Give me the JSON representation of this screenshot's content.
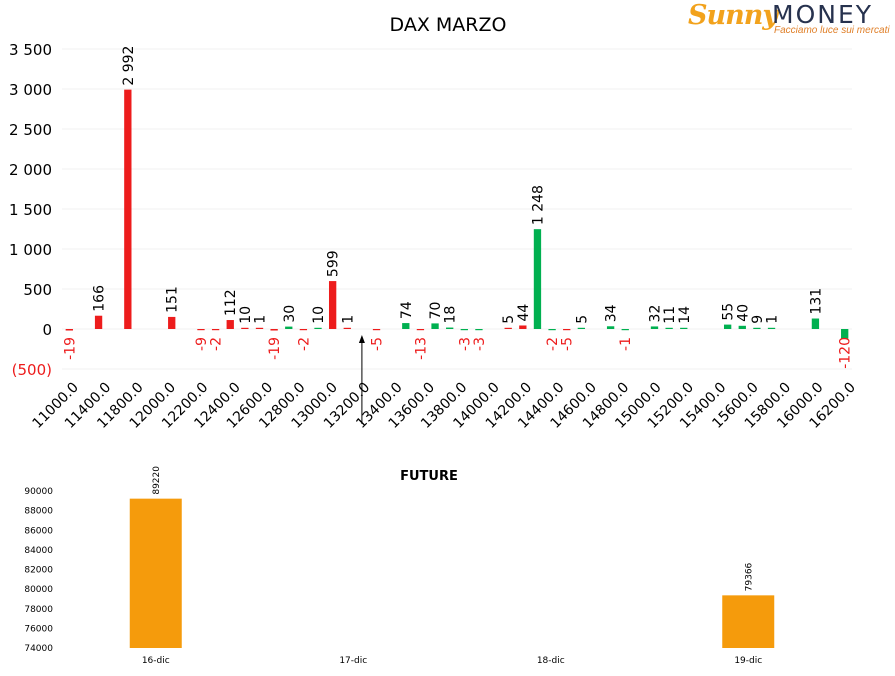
{
  "logo": {
    "brand": "Sunny",
    "brand2": "MONEY",
    "tagline": "Facciamo luce sui mercati"
  },
  "chart_data": [
    {
      "type": "bar",
      "title": "DAX MARZO",
      "ylim": [
        -500,
        3500
      ],
      "yticks": [
        -500,
        0,
        500,
        1000,
        1500,
        2000,
        2500,
        3000,
        3500
      ],
      "ytick_labels": [
        "(500)",
        "0",
        "500",
        "1 000",
        "1 500",
        "2 000",
        "2 500",
        "3 000",
        "3 500"
      ],
      "grid": true,
      "categories": [
        "11000.0",
        "11400.0",
        "11800.0",
        "12000.0",
        "12200.0",
        "12400.0",
        "12600.0",
        "12800.0",
        "13000.0",
        "13200.0",
        "13400.0",
        "13600.0",
        "13800.0",
        "14000.0",
        "14200.0",
        "14400.0",
        "14600.0",
        "14800.0",
        "15000.0",
        "15200.0",
        "15400.0",
        "15600.0",
        "15800.0",
        "16000.0",
        "16200.0"
      ],
      "colors": {
        "put": "#ed1c1c",
        "call": "#00b050",
        "negative_label": "#ed1c1c"
      },
      "bars": [
        {
          "slot": 0,
          "value": -19,
          "color": "put",
          "label": "-19"
        },
        {
          "slot": 2,
          "value": 166,
          "color": "put",
          "label": "166"
        },
        {
          "slot": 4,
          "value": 2992,
          "color": "put",
          "label": "2 992"
        },
        {
          "slot": 7,
          "value": 151,
          "color": "put",
          "label": "151"
        },
        {
          "slot": 9,
          "value": -9,
          "color": "put",
          "label": "-9"
        },
        {
          "slot": 10,
          "value": -2,
          "color": "put",
          "label": "-2"
        },
        {
          "slot": 11,
          "value": 112,
          "color": "put",
          "label": "112"
        },
        {
          "slot": 12,
          "value": 10,
          "color": "put",
          "label": "10"
        },
        {
          "slot": 13,
          "value": 1,
          "color": "put",
          "label": "1"
        },
        {
          "slot": 14,
          "value": -19,
          "color": "put",
          "label": "-19"
        },
        {
          "slot": 15,
          "value": 30,
          "color": "call",
          "label": "30"
        },
        {
          "slot": 16,
          "value": -2,
          "color": "put",
          "label": "-2"
        },
        {
          "slot": 17,
          "value": 10,
          "color": "call",
          "label": "10"
        },
        {
          "slot": 18,
          "value": 599,
          "color": "put",
          "label": "599"
        },
        {
          "slot": 19,
          "value": 1,
          "color": "put",
          "label": "1"
        },
        {
          "slot": 21,
          "value": -5,
          "color": "put",
          "label": "-5"
        },
        {
          "slot": 23,
          "value": 74,
          "color": "call",
          "label": "74"
        },
        {
          "slot": 24,
          "value": -13,
          "color": "put",
          "label": "-13"
        },
        {
          "slot": 25,
          "value": 70,
          "color": "call",
          "label": "70"
        },
        {
          "slot": 26,
          "value": 18,
          "color": "call",
          "label": "18"
        },
        {
          "slot": 27,
          "value": -3,
          "color": "call",
          "label": "-3"
        },
        {
          "slot": 28,
          "value": -3,
          "color": "call",
          "label": "-3"
        },
        {
          "slot": 30,
          "value": 5,
          "color": "put",
          "label": "5"
        },
        {
          "slot": 31,
          "value": 44,
          "color": "put",
          "label": "44"
        },
        {
          "slot": 32,
          "value": 1248,
          "color": "call",
          "label": "1 248"
        },
        {
          "slot": 33,
          "value": -2,
          "color": "call",
          "label": "-2"
        },
        {
          "slot": 34,
          "value": -5,
          "color": "put",
          "label": "-5"
        },
        {
          "slot": 35,
          "value": 5,
          "color": "call",
          "label": "5"
        },
        {
          "slot": 37,
          "value": 34,
          "color": "call",
          "label": "34"
        },
        {
          "slot": 38,
          "value": -1,
          "color": "call",
          "label": "-1"
        },
        {
          "slot": 40,
          "value": 32,
          "color": "call",
          "label": "32"
        },
        {
          "slot": 41,
          "value": 11,
          "color": "call",
          "label": "11"
        },
        {
          "slot": 42,
          "value": 14,
          "color": "call",
          "label": "14"
        },
        {
          "slot": 45,
          "value": 55,
          "color": "call",
          "label": "55"
        },
        {
          "slot": 46,
          "value": 40,
          "color": "call",
          "label": "40"
        },
        {
          "slot": 47,
          "value": 9,
          "color": "call",
          "label": "9"
        },
        {
          "slot": 48,
          "value": 1,
          "color": "call",
          "label": "1"
        },
        {
          "slot": 51,
          "value": 131,
          "color": "call",
          "label": "131"
        },
        {
          "slot": 53,
          "value": -120,
          "color": "call",
          "label": "-120"
        }
      ],
      "slot_count": 54,
      "annotation": {
        "type": "arrow",
        "slot": 20
      }
    },
    {
      "type": "bar",
      "title": "FUTURE",
      "categories": [
        "16-dic",
        "17-dic",
        "18-dic",
        "19-dic"
      ],
      "values": [
        89220,
        null,
        null,
        79366
      ],
      "data_labels": [
        "89220",
        "",
        "",
        "79366"
      ],
      "ylim": [
        74000,
        90000
      ],
      "yticks": [
        74000,
        76000,
        78000,
        80000,
        82000,
        84000,
        86000,
        88000,
        90000
      ],
      "color": "#f59b0c",
      "grid": false
    }
  ]
}
